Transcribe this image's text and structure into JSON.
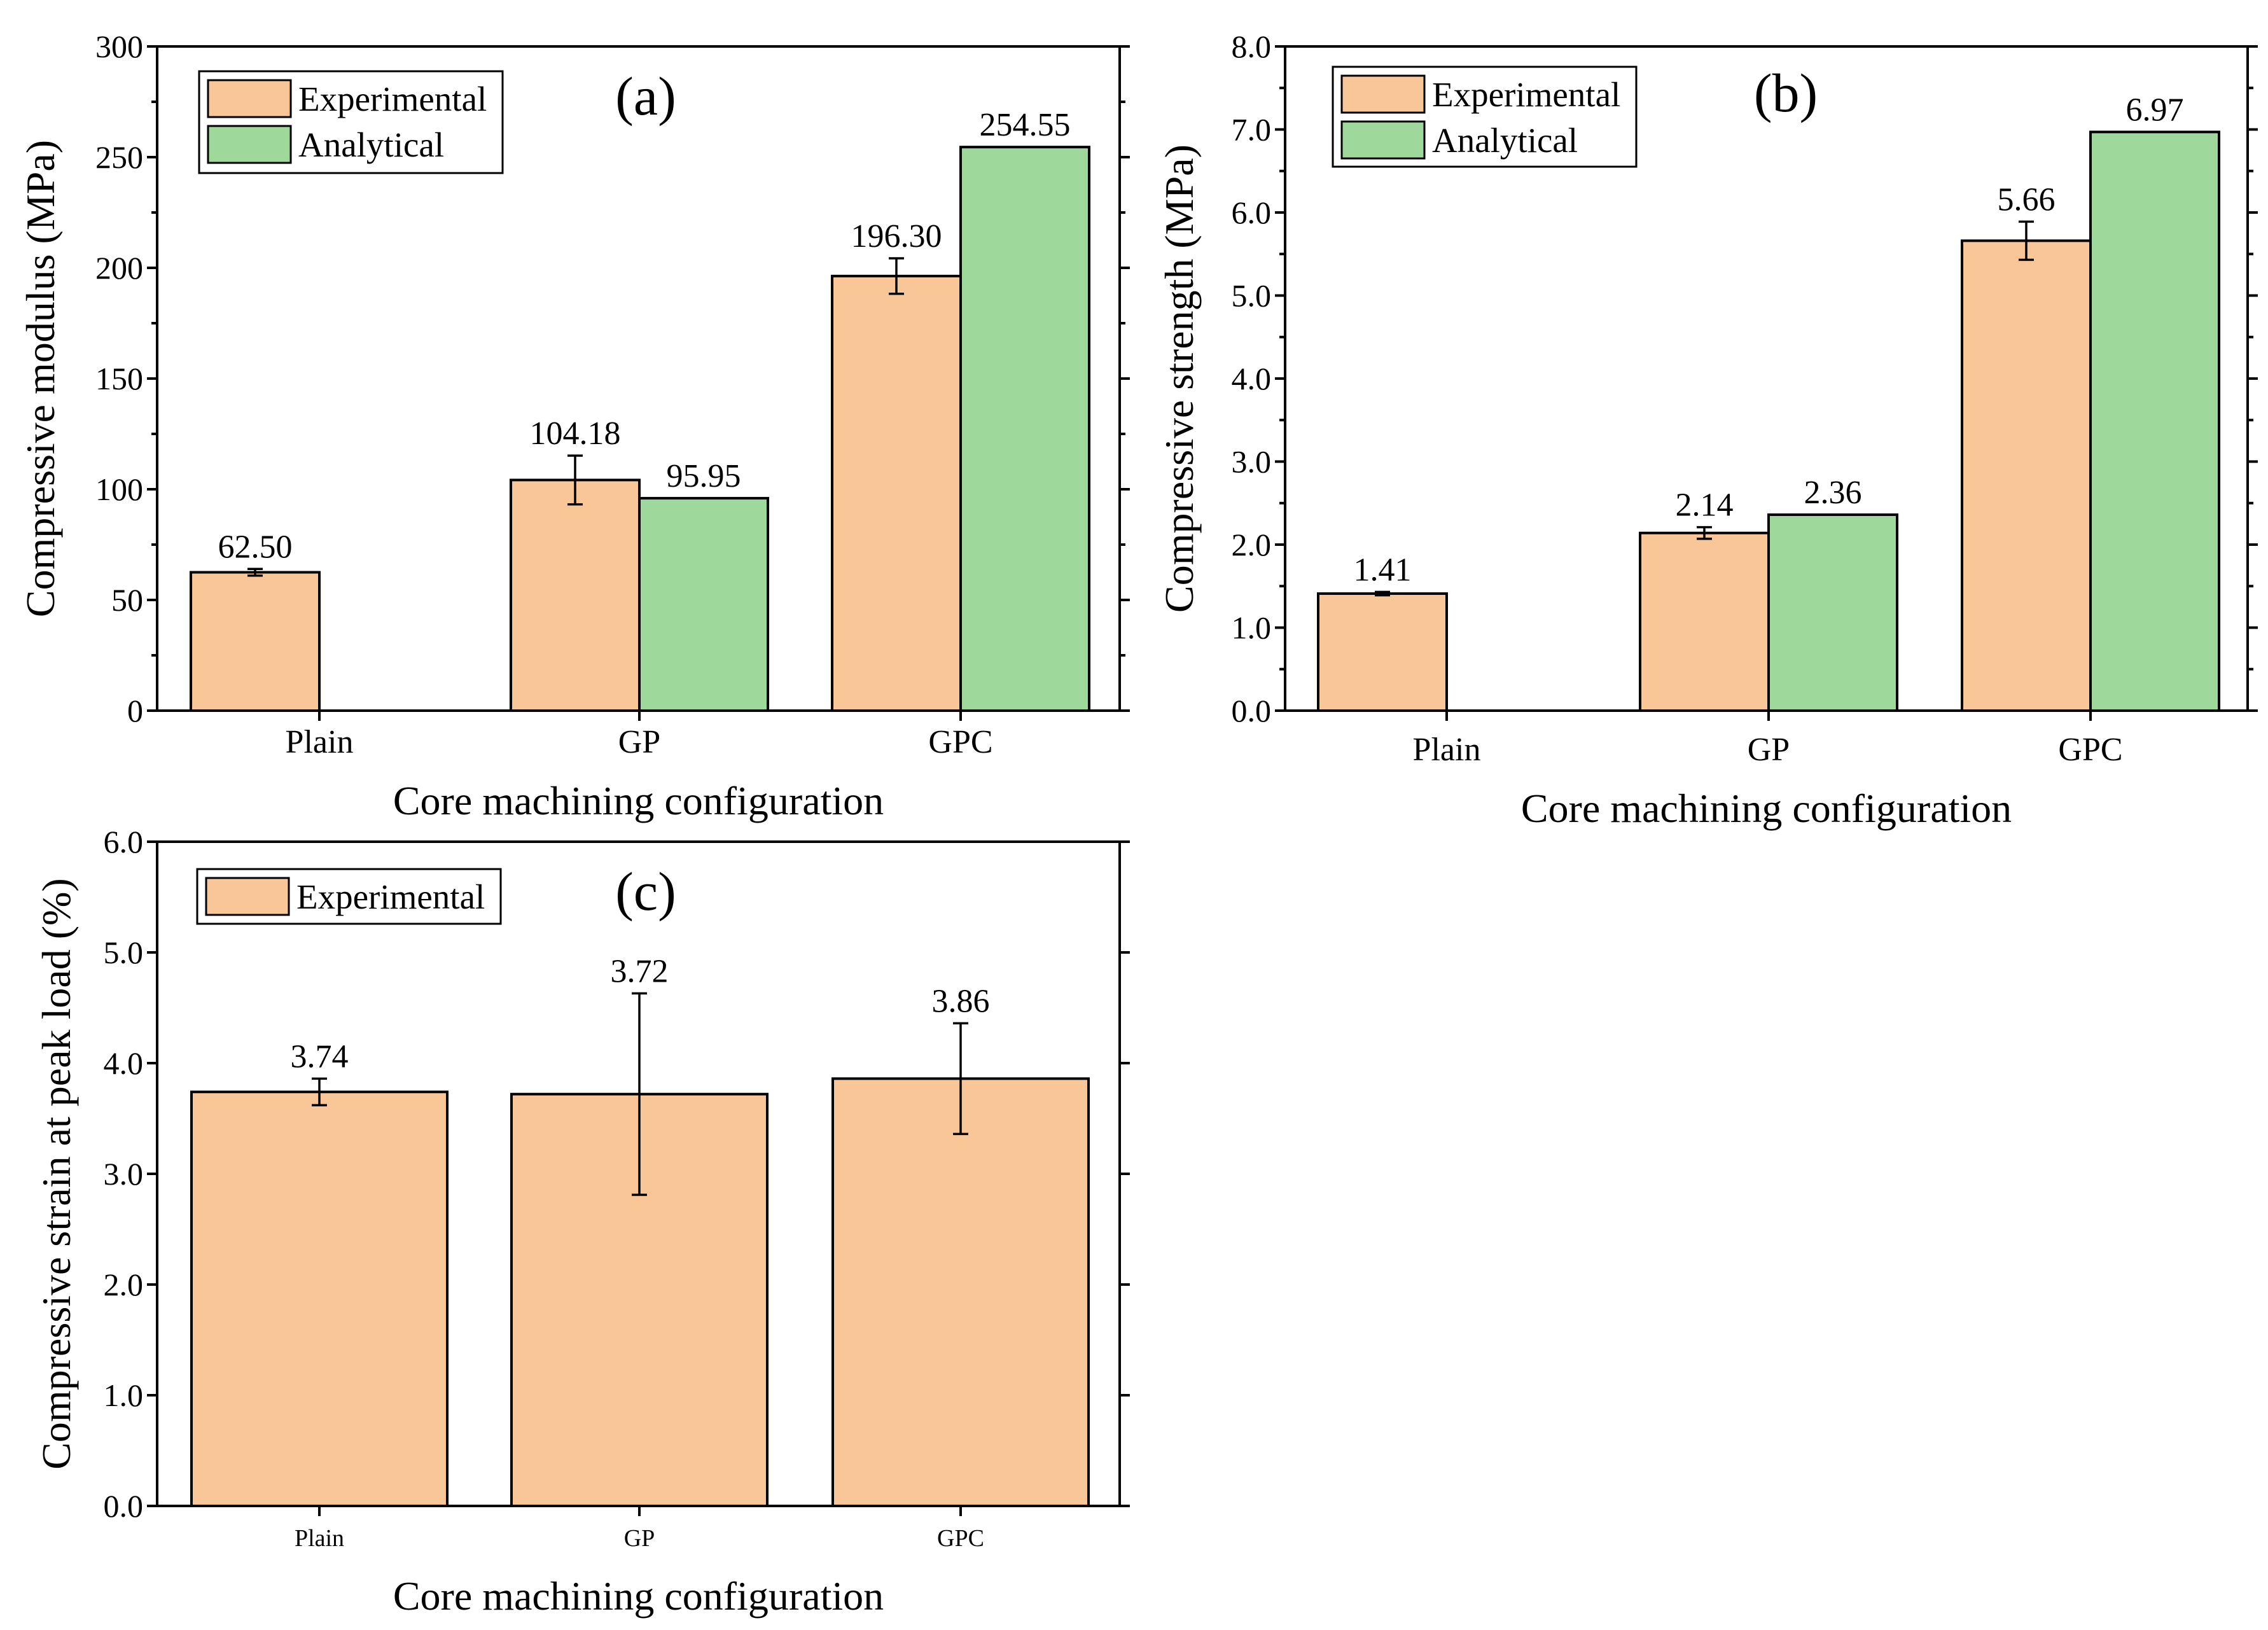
{
  "colors": {
    "experimental": "#F9C697",
    "analytical": "#9ED89B"
  },
  "chart_data": [
    {
      "id": "a",
      "type": "bar",
      "panel_label": "(a)",
      "categories": [
        "Plain",
        "GP",
        "GPC"
      ],
      "xlabel": "Core machining configuration",
      "ylabel": "Compressive modulus (MPa)",
      "ylim": [
        0,
        300
      ],
      "yticks": [
        0,
        50,
        100,
        150,
        200,
        250,
        300
      ],
      "ytick_labels": [
        "0",
        "50",
        "100",
        "150",
        "200",
        "250",
        "300"
      ],
      "minor_ticks": 1,
      "legend_position": "top-left",
      "series": [
        {
          "name": "Experimental",
          "key": "experimental",
          "values": [
            62.5,
            104.18,
            196.3
          ],
          "labels": [
            "62.50",
            "104.18",
            "196.30"
          ],
          "errors": [
            1.5,
            11,
            8
          ]
        },
        {
          "name": "Analytical",
          "key": "analytical",
          "values": [
            null,
            95.95,
            254.55
          ],
          "labels": [
            "",
            "95.95",
            "254.55"
          ],
          "errors": [
            null,
            null,
            null
          ]
        }
      ]
    },
    {
      "id": "b",
      "type": "bar",
      "panel_label": "(b)",
      "categories": [
        "Plain",
        "GP",
        "GPC"
      ],
      "xlabel": "Core machining configuration",
      "ylabel": "Compressive strength (MPa)",
      "ylim": [
        0,
        8
      ],
      "yticks": [
        0,
        1,
        2,
        3,
        4,
        5,
        6,
        7,
        8
      ],
      "ytick_labels": [
        "0.0",
        "1.0",
        "2.0",
        "3.0",
        "4.0",
        "5.0",
        "6.0",
        "7.0",
        "8.0"
      ],
      "minor_ticks": 1,
      "legend_position": "top-left",
      "series": [
        {
          "name": "Experimental",
          "key": "experimental",
          "values": [
            1.41,
            2.14,
            5.66
          ],
          "labels": [
            "1.41",
            "2.14",
            "5.66"
          ],
          "errors": [
            0.02,
            0.07,
            0.23
          ]
        },
        {
          "name": "Analytical",
          "key": "analytical",
          "values": [
            null,
            2.36,
            6.97
          ],
          "labels": [
            "",
            "2.36",
            "6.97"
          ],
          "errors": [
            null,
            null,
            null
          ]
        }
      ]
    },
    {
      "id": "c",
      "type": "bar",
      "panel_label": "(c)",
      "categories": [
        "Plain",
        "GP",
        "GPC"
      ],
      "xlabel": "Core machining configuration",
      "ylabel": "Compressive strain at peak load (%)",
      "ylim": [
        0,
        6
      ],
      "yticks": [
        0,
        1,
        2,
        3,
        4,
        5,
        6
      ],
      "ytick_labels": [
        "0.0",
        "1.0",
        "2.0",
        "3.0",
        "4.0",
        "5.0",
        "6.0"
      ],
      "minor_ticks": 0,
      "legend_position": "top-left",
      "series": [
        {
          "name": "Experimental",
          "key": "experimental",
          "values": [
            3.74,
            3.72,
            3.86
          ],
          "labels": [
            "3.74",
            "3.72",
            "3.86"
          ],
          "errors": [
            0.12,
            0.91,
            0.5
          ]
        }
      ]
    }
  ]
}
